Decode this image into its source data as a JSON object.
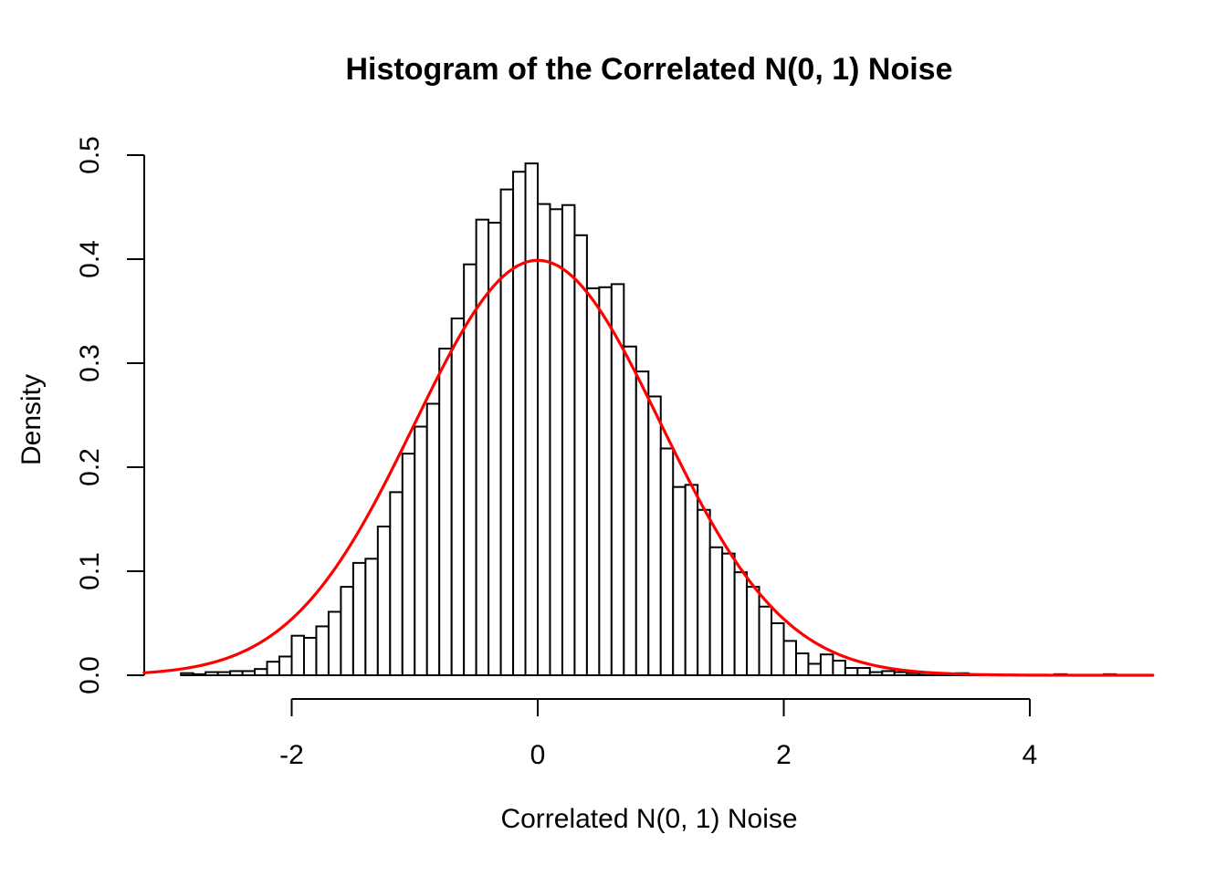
{
  "title": "Histogram of the Correlated N(0, 1) Noise",
  "xlabel": "Correlated N(0, 1) Noise",
  "ylabel": "Density",
  "axes": {
    "x_tick_labels": [
      "-2",
      "0",
      "2",
      "4"
    ],
    "x_tick_values": [
      -2,
      0,
      2,
      4
    ],
    "y_tick_labels": [
      "0.0",
      "0.1",
      "0.2",
      "0.3",
      "0.4",
      "0.5"
    ],
    "y_tick_values": [
      0.0,
      0.1,
      0.2,
      0.3,
      0.4,
      0.5
    ]
  },
  "colors": {
    "bar_fill": "#ffffff",
    "bar_border": "#000000",
    "axis": "#000000",
    "curve": "#ff0000"
  },
  "chart_data": {
    "type": "bar",
    "subtype": "histogram",
    "title": "Histogram of the Correlated N(0, 1) Noise",
    "xlabel": "Correlated N(0, 1) Noise",
    "ylabel": "Density",
    "xlim": [
      -3.2,
      5.0
    ],
    "ylim": [
      0,
      0.5
    ],
    "grid": false,
    "legend": "none",
    "bin_start": -2.9,
    "bin_width": 0.1,
    "densities": [
      0.002,
      0.001,
      0.003,
      0.003,
      0.004,
      0.004,
      0.006,
      0.013,
      0.018,
      0.038,
      0.036,
      0.047,
      0.061,
      0.085,
      0.108,
      0.112,
      0.143,
      0.176,
      0.213,
      0.239,
      0.261,
      0.314,
      0.343,
      0.395,
      0.438,
      0.435,
      0.467,
      0.484,
      0.492,
      0.453,
      0.448,
      0.452,
      0.423,
      0.372,
      0.373,
      0.376,
      0.316,
      0.292,
      0.268,
      0.218,
      0.181,
      0.183,
      0.159,
      0.123,
      0.117,
      0.099,
      0.085,
      0.066,
      0.05,
      0.033,
      0.021,
      0.011,
      0.02,
      0.014,
      0.007,
      0.007,
      0.003,
      0.004,
      0.003,
      0.002,
      0.002,
      0.001,
      0.001,
      0.002,
      0.0,
      0.0,
      0.0,
      0.0,
      0.0,
      0.0,
      0.0,
      0.001,
      0.0,
      0.0,
      0.0,
      0.001
    ],
    "overlay_curve": {
      "name": "standard-normal-density",
      "distribution": "N(0, 1)",
      "mean": 0,
      "sd": 1,
      "peak_density": 0.3989,
      "color": "#ff0000",
      "x_range": [
        -3.2,
        5.0
      ]
    }
  }
}
